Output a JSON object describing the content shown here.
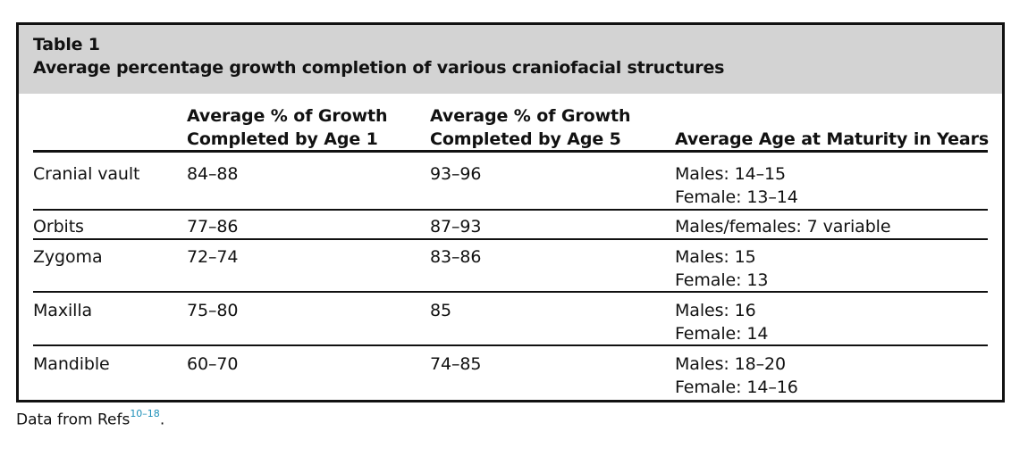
{
  "table": {
    "label": "Table 1",
    "title": "Average percentage growth completion of various craniofacial structures",
    "headers": {
      "col1": [
        "Average % of Growth",
        "Completed by Age 1"
      ],
      "col2": [
        "Average % of Growth",
        "Completed by Age 5"
      ],
      "col3": [
        "Average Age at Maturity in Years"
      ]
    },
    "rows": [
      {
        "structure": "Cranial vault",
        "age1": "84–88",
        "age5": "93–96",
        "maturity": [
          "Males: 14–15",
          "Female: 13–14"
        ]
      },
      {
        "structure": "Orbits",
        "age1": "77–86",
        "age5": "87–93",
        "maturity": [
          "Males/females: 7 variable"
        ]
      },
      {
        "structure": "Zygoma",
        "age1": "72–74",
        "age5": "83–86",
        "maturity": [
          "Males: 15",
          "Female: 13"
        ]
      },
      {
        "structure": "Maxilla",
        "age1": "75–80",
        "age5": "85",
        "maturity": [
          "Males: 16",
          "Female: 14"
        ]
      },
      {
        "structure": "Mandible",
        "age1": "60–70",
        "age5": "74–85",
        "maturity": [
          "Males: 18–20",
          "Female: 14–16"
        ]
      }
    ]
  },
  "footnote": {
    "text": "Data from Refs",
    "refs": "10–18",
    "end": "."
  }
}
